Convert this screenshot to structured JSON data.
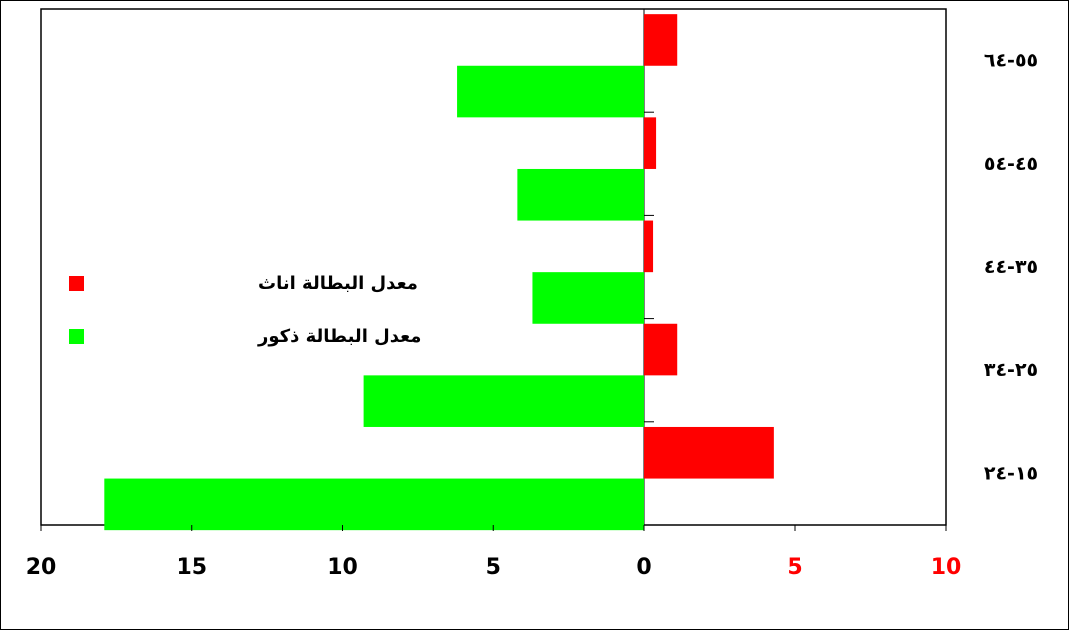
{
  "chart_data": {
    "type": "bar",
    "orientation": "horizontal-diverging",
    "categories": [
      "١٥-٢٤",
      "٢٥-٣٤",
      "٣٥-٤٤",
      "٤٥-٥٤",
      "٥٥-٦٤"
    ],
    "series": [
      {
        "name": "معدل البطالة اناث",
        "values": [
          4.3,
          1.1,
          0.3,
          0.4,
          1.1
        ],
        "color": "#ff0000",
        "direction": "right"
      },
      {
        "name": "معدل البطالة ذكور",
        "values": [
          17.9,
          9.3,
          3.7,
          4.2,
          6.2
        ],
        "color": "#00ff00",
        "direction": "left"
      }
    ],
    "x_ticks_left": [
      "20",
      "15",
      "10",
      "5",
      "0"
    ],
    "x_ticks_right": [
      "5",
      "10"
    ],
    "x_tick_colors": {
      "left": "#000000",
      "right": "#ff0000"
    },
    "xlim_left": [
      0,
      20
    ],
    "xlim_right": [
      0,
      10
    ],
    "title": "",
    "xlabel": "",
    "ylabel": "",
    "legend": "left-middle",
    "grid": false
  }
}
